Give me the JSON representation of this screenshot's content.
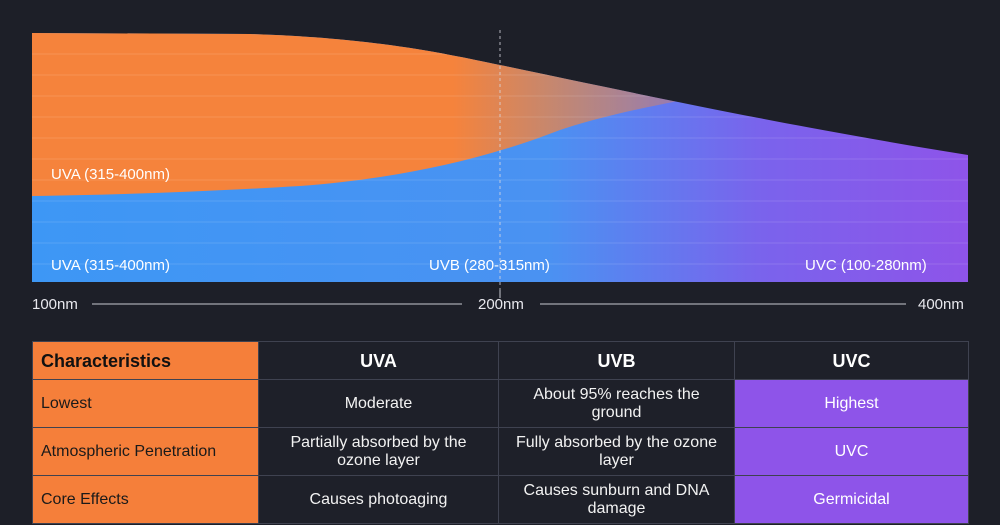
{
  "spectrum": {
    "band_labels": {
      "upper_left": "UVA (315-400nm)",
      "lower_left": "UVA (315-400nm)",
      "lower_middle": "UVB (280-315nm)",
      "lower_right": "UVC (100-280nm)"
    },
    "axis_ticks": [
      "100nm",
      "200nm",
      "400nm"
    ],
    "colors": {
      "uva": "#f5833c",
      "uvb": "#3d97f5",
      "uvc": "#8e54e9"
    }
  },
  "table": {
    "headers": [
      "Characteristics",
      "UVA",
      "UVB",
      "UVC"
    ],
    "rows": [
      {
        "label": "Lowest",
        "uva": "Moderate",
        "uvb": "About 95% reaches the ground",
        "uvc": "Highest"
      },
      {
        "label": "Atmospheric Penetration",
        "uva": "Partially absorbed by the ozone layer",
        "uvb": "Fully absorbed by the ozone layer",
        "uvc": "UVC"
      },
      {
        "label": "Core Effects",
        "uva": "Causes photoaging",
        "uvb": "Causes sunburn and DNA damage",
        "uvc": "Germicidal"
      }
    ]
  }
}
